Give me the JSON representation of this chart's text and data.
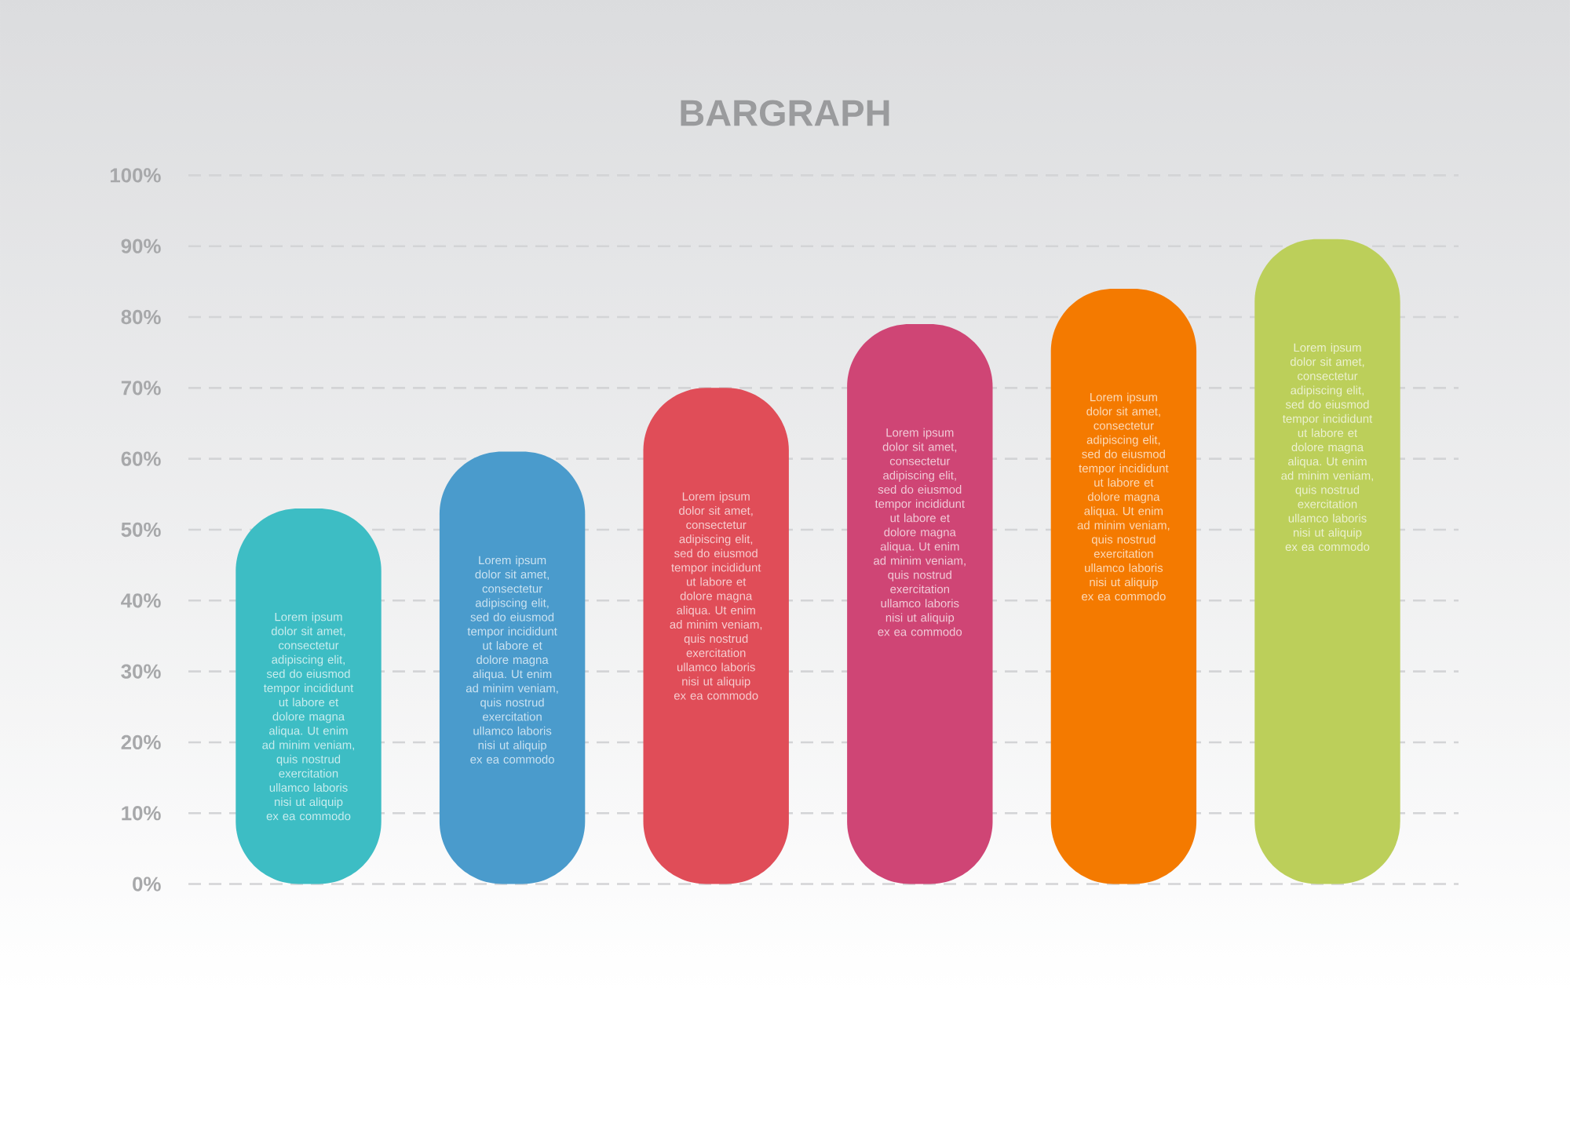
{
  "chart_data": {
    "type": "bar",
    "title": "BARGRAPH",
    "categories": [
      null,
      null,
      null,
      null,
      null,
      null
    ],
    "values": [
      53,
      61,
      70,
      79,
      84,
      91
    ],
    "colors": [
      "#3dbdc4",
      "#4a9bcc",
      "#e04d58",
      "#cf4575",
      "#f47a00",
      "#bccf5a"
    ],
    "ylim": [
      0,
      100
    ],
    "yticks": [
      {
        "value": 0,
        "label": "0%"
      },
      {
        "value": 10,
        "label": "10%"
      },
      {
        "value": 20,
        "label": "20%"
      },
      {
        "value": 30,
        "label": "30%"
      },
      {
        "value": 40,
        "label": "40%"
      },
      {
        "value": 50,
        "label": "50%"
      },
      {
        "value": 60,
        "label": "60%"
      },
      {
        "value": 70,
        "label": "70%"
      },
      {
        "value": 80,
        "label": "80%"
      },
      {
        "value": 90,
        "label": "90%"
      },
      {
        "value": 100,
        "label": "100%"
      }
    ],
    "grid": "y",
    "annotations": [
      "Lorem ipsum dolor sit amet, consectetur adipiscing elit, sed do eiusmod tempor incididunt ut labore et dolore magna aliqua. Ut enim ad minim veniam, quis nostrud exercitation ullamco laboris nisi ut aliquip ex ea commodo",
      "Lorem ipsum dolor sit amet, consectetur adipiscing elit, sed do eiusmod tempor incididunt ut labore et dolore magna aliqua. Ut enim ad minim veniam, quis nostrud exercitation ullamco laboris nisi ut aliquip ex ea commodo",
      "Lorem ipsum dolor sit amet, consectetur adipiscing elit, sed do eiusmod tempor incididunt ut labore et dolore magna aliqua. Ut enim ad minim veniam, quis nostrud exercitation ullamco laboris nisi ut aliquip ex ea commodo",
      "Lorem ipsum dolor sit amet, consectetur adipiscing elit, sed do eiusmod tempor incididunt ut labore et dolore magna aliqua. Ut enim ad minim veniam, quis nostrud exercitation ullamco laboris nisi ut aliquip ex ea commodo",
      "Lorem ipsum dolor sit amet, consectetur adipiscing elit, sed do eiusmod tempor incididunt ut labore et dolore magna aliqua. Ut enim ad minim veniam, quis nostrud exercitation ullamco laboris nisi ut aliquip ex ea commodo",
      "Lorem ipsum dolor sit amet, consectetur adipiscing elit, sed do eiusmod tempor incididunt ut labore et dolore magna aliqua. Ut enim ad minim veniam, quis nostrud exercitation ullamco laboris nisi ut aliquip ex ea commodo"
    ]
  }
}
